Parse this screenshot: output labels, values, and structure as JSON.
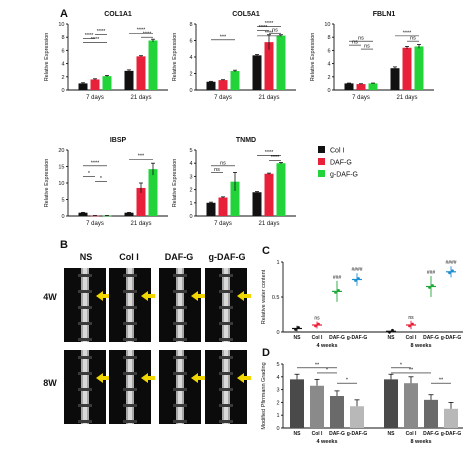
{
  "panel_labels": {
    "A": "A",
    "B": "B",
    "C": "C",
    "D": "D"
  },
  "legend": [
    {
      "label": "Col I",
      "color": "#111111"
    },
    {
      "label": "DAF-G",
      "color": "#e8203a"
    },
    {
      "label": "g-DAF-G",
      "color": "#22d33a"
    }
  ],
  "panel_b": {
    "columns": [
      "NS",
      "Col I",
      "DAF-G",
      "g-DAF-G"
    ],
    "rows": [
      "4W",
      "8W"
    ]
  },
  "chart_data": [
    {
      "type": "bar",
      "panel": "A",
      "title": "COL1A1",
      "ylabel": "Relative Expression",
      "ylim": [
        0,
        10
      ],
      "yticks": [
        0,
        2,
        4,
        6,
        8,
        10
      ],
      "categories": [
        "7 days",
        "21 days"
      ],
      "series": [
        {
          "name": "Col I",
          "values": [
            1.0,
            2.9
          ],
          "errors": [
            0.1,
            0.15
          ]
        },
        {
          "name": "DAF-G",
          "values": [
            1.6,
            5.1
          ],
          "errors": [
            0.1,
            0.1
          ]
        },
        {
          "name": "g-DAF-G",
          "values": [
            2.1,
            7.5
          ],
          "errors": [
            0.1,
            0.2
          ]
        }
      ],
      "significance": [
        "****",
        "****",
        "****",
        "****",
        "****"
      ]
    },
    {
      "type": "bar",
      "panel": "A",
      "title": "COL5A1",
      "ylabel": "Relative Expression",
      "ylim": [
        0,
        8
      ],
      "yticks": [
        0,
        2,
        4,
        6,
        8
      ],
      "categories": [
        "7 days",
        "21 days"
      ],
      "series": [
        {
          "name": "Col I",
          "values": [
            1.0,
            4.2
          ],
          "errors": [
            0.05,
            0.1
          ]
        },
        {
          "name": "DAF-G",
          "values": [
            1.2,
            5.8
          ],
          "errors": [
            0.05,
            0.9
          ]
        },
        {
          "name": "g-DAF-G",
          "values": [
            2.3,
            6.6
          ],
          "errors": [
            0.1,
            0.1
          ]
        }
      ],
      "significance": [
        "***",
        "****",
        "****",
        "ns",
        "****"
      ]
    },
    {
      "type": "bar",
      "panel": "A",
      "title": "FBLN1",
      "ylabel": "Relative Expression",
      "ylim": [
        0,
        10
      ],
      "yticks": [
        0,
        2,
        4,
        6,
        8,
        10
      ],
      "categories": [
        "7 days",
        "21 days"
      ],
      "series": [
        {
          "name": "Col I",
          "values": [
            1.0,
            3.3
          ],
          "errors": [
            0.05,
            0.2
          ]
        },
        {
          "name": "DAF-G",
          "values": [
            0.9,
            6.4
          ],
          "errors": [
            0.05,
            0.2
          ]
        },
        {
          "name": "g-DAF-G",
          "values": [
            1.0,
            6.6
          ],
          "errors": [
            0.05,
            0.3
          ]
        }
      ],
      "significance": [
        "ns",
        "ns",
        "ns",
        "ns",
        "****"
      ]
    },
    {
      "type": "bar",
      "panel": "A",
      "title": "IBSP",
      "ylabel": "Relative Expression",
      "ylim": [
        0,
        20
      ],
      "yticks": [
        0,
        5,
        10,
        15,
        20
      ],
      "categories": [
        "7 days",
        "21 days"
      ],
      "series": [
        {
          "name": "Col I",
          "values": [
            1.0,
            1.0
          ],
          "errors": [
            0.1,
            0.1
          ]
        },
        {
          "name": "DAF-G",
          "values": [
            0.1,
            8.5
          ],
          "errors": [
            0.05,
            1.5
          ]
        },
        {
          "name": "g-DAF-G",
          "values": [
            0.1,
            14.2
          ],
          "errors": [
            0.05,
            1.8
          ]
        }
      ],
      "significance": [
        "****",
        "*",
        "*",
        "***"
      ]
    },
    {
      "type": "bar",
      "panel": "A",
      "title": "TNMD",
      "ylabel": "Relative Expression",
      "ylim": [
        0,
        5
      ],
      "yticks": [
        0,
        1,
        2,
        3,
        4,
        5
      ],
      "categories": [
        "7 days",
        "21 days"
      ],
      "series": [
        {
          "name": "Col I",
          "values": [
            1.0,
            1.8
          ],
          "errors": [
            0.05,
            0.05
          ]
        },
        {
          "name": "DAF-G",
          "values": [
            1.4,
            3.2
          ],
          "errors": [
            0.05,
            0.05
          ]
        },
        {
          "name": "g-DAF-G",
          "values": [
            2.6,
            4.0
          ],
          "errors": [
            0.7,
            0.05
          ]
        }
      ],
      "significance": [
        "ns",
        "ns",
        "****",
        "****"
      ]
    },
    {
      "type": "scatter",
      "panel": "C",
      "ylabel": "Relative water content",
      "ylim": [
        0,
        1.0
      ],
      "yticks": [
        0,
        0.5,
        1.0
      ],
      "groups": [
        "4 weeks",
        "8 weeks"
      ],
      "categories": [
        "NS",
        "Col I",
        "DAF-G",
        "g-DAF-G"
      ],
      "series": [
        {
          "group": "4 weeks",
          "category": "NS",
          "mean": 0.05,
          "sd": 0.04,
          "label": ""
        },
        {
          "group": "4 weeks",
          "category": "Col I",
          "mean": 0.1,
          "sd": 0.05,
          "label": "ns"
        },
        {
          "group": "4 weeks",
          "category": "DAF-G",
          "mean": 0.58,
          "sd": 0.15,
          "label": "###"
        },
        {
          "group": "4 weeks",
          "category": "g-DAF-G",
          "mean": 0.75,
          "sd": 0.09,
          "label": "####"
        },
        {
          "group": "8 weeks",
          "category": "NS",
          "mean": 0.01,
          "sd": 0.01,
          "label": ""
        },
        {
          "group": "8 weeks",
          "category": "Col I",
          "mean": 0.1,
          "sd": 0.06,
          "label": "ns"
        },
        {
          "group": "8 weeks",
          "category": "DAF-G",
          "mean": 0.65,
          "sd": 0.15,
          "label": "###"
        },
        {
          "group": "8 weeks",
          "category": "g-DAF-G",
          "mean": 0.86,
          "sd": 0.08,
          "label": "####"
        }
      ]
    },
    {
      "type": "bar",
      "panel": "D",
      "ylabel": "Modified Pfirrmann Grading",
      "ylim": [
        0,
        5
      ],
      "yticks": [
        0,
        1,
        2,
        3,
        4,
        5
      ],
      "groups": [
        "4 weeks",
        "8 weeks"
      ],
      "categories": [
        "NS",
        "Col I",
        "DAF-G",
        "g-DAF-G"
      ],
      "series": [
        {
          "group": "4 weeks",
          "values": [
            3.8,
            3.3,
            2.5,
            1.7
          ],
          "errors": [
            0.4,
            0.5,
            0.4,
            0.5
          ]
        },
        {
          "group": "8 weeks",
          "values": [
            3.8,
            3.5,
            2.2,
            1.5
          ],
          "errors": [
            0.4,
            0.5,
            0.4,
            0.5
          ]
        }
      ],
      "significance": [
        "**",
        "*",
        "*",
        "*",
        "**",
        "**"
      ]
    }
  ]
}
